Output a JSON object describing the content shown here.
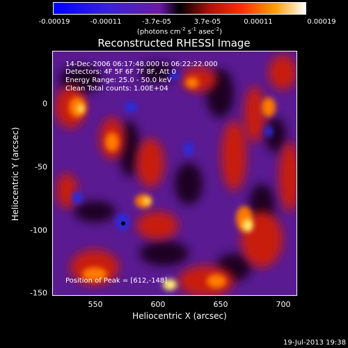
{
  "colorbar": {
    "ticks": [
      "-0.00019",
      "-0.00011",
      "-3.7e-05",
      "3.7e-05",
      "0.00011",
      "0.00019"
    ],
    "units_main": "(photons cm",
    "units_exp1": "-2",
    "units_mid": " s",
    "units_exp2": "-1",
    "units_tail": " asec",
    "units_exp3": "-2",
    "units_end": ")"
  },
  "title": "Reconstructed RHESSI Image",
  "annotations": {
    "time_range": "14-Dec-2006 06:17:48.000 to 06:22:22.000",
    "detectors": "Detectors: 4F 5F 6F 7F 8F, Att 0",
    "energy": "Energy Range: 25.0 - 50.0 keV",
    "method": "Clean     Total counts: 1.00E+04",
    "peak": "Position of Peak = [612,-148]"
  },
  "axes": {
    "xlabel": "Heliocentric X (arcsec)",
    "ylabel": "Heliocentric Y (arcsec)",
    "xticks": [
      "550",
      "600",
      "650",
      "700"
    ],
    "yticks": [
      "0",
      "-50",
      "-100",
      "-150"
    ],
    "xlim": [
      516,
      711
    ],
    "ylim": [
      -152,
      43
    ]
  },
  "timestamp": "19-Jul-2013 19:38"
}
